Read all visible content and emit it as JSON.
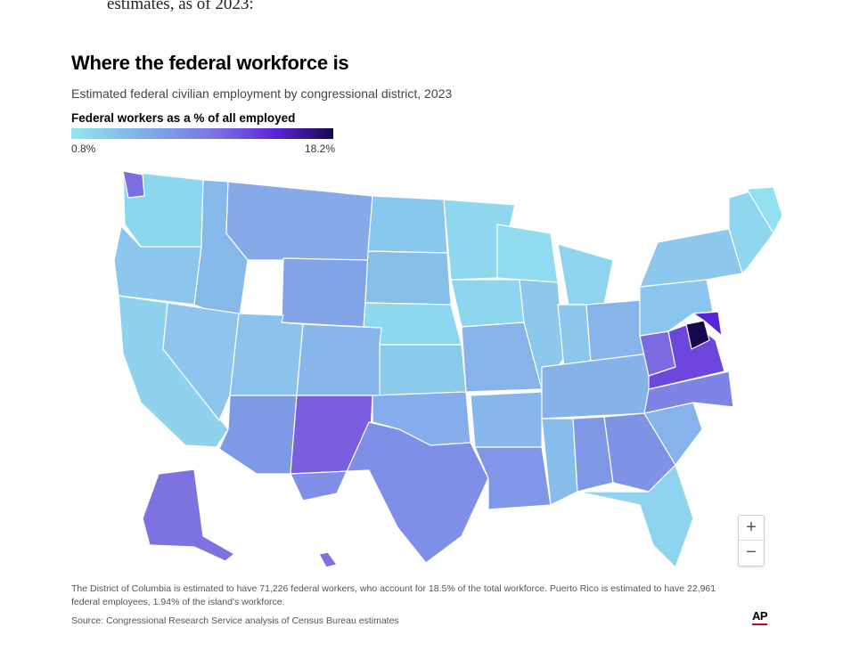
{
  "article": {
    "intro_fragment": "estimates, as of 2023:"
  },
  "map_card": {
    "title": "Where the federal workforce is",
    "subtitle": "Estimated federal civilian employment by congressional district, 2023",
    "legend": {
      "title": "Federal workers as a % of all employed",
      "min_label": "0.8%",
      "max_label": "18.2%",
      "min_value": 0.8,
      "max_value": 18.2,
      "colors": [
        "#93e6ef",
        "#7fb3ea",
        "#7b73e3",
        "#5a25d9",
        "#17084f"
      ]
    },
    "zoom": {
      "in_label": "+",
      "out_label": "−"
    },
    "note": "The District of Columbia is estimated to have 71,226 federal workers, who account for 18.5% of the total workforce. Puerto Rico is estimated to have 22,961 federal employees, 1.94% of the island's workforce.",
    "source": "Source: Congressional Research Service analysis of Census Bureau estimates",
    "credit": "AP"
  },
  "map_data": {
    "region": "United States congressional districts",
    "highlighted_states": {
      "high_share": [
        "Virginia",
        "Maryland",
        "Washington, D.C. area"
      ],
      "elevated_share": [
        "New Mexico",
        "Alaska",
        "Texas (parts)",
        "Oklahoma (parts)",
        "North Carolina (parts)"
      ]
    }
  }
}
